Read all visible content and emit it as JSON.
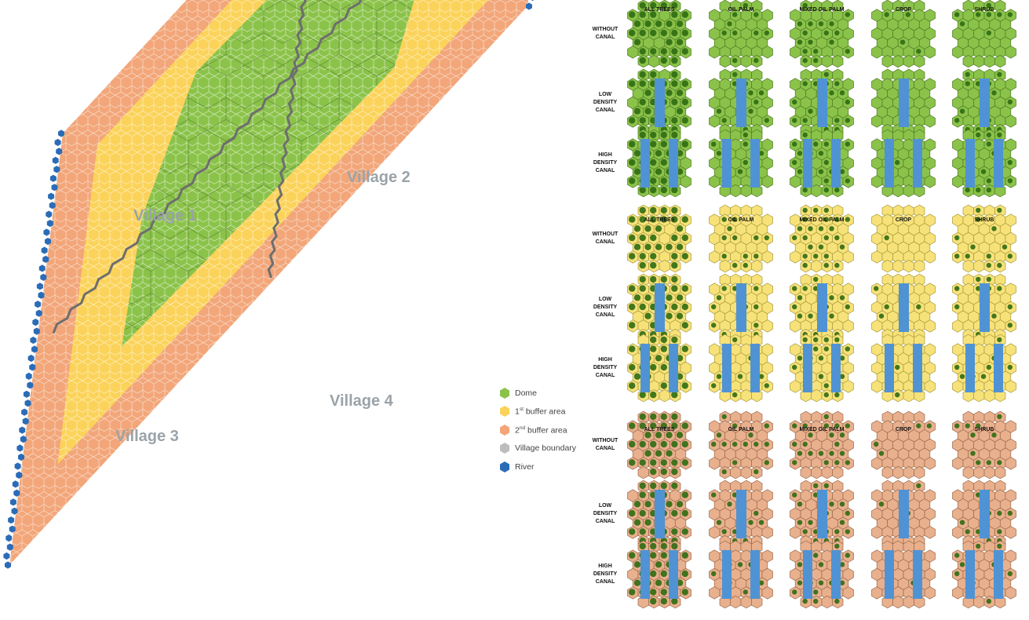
{
  "map": {
    "villages": [
      "Village 1",
      "Village 2",
      "Village 3",
      "Village 4"
    ],
    "colors": {
      "dome": "#8bc34a",
      "buffer1": "#fbd35a",
      "buffer2": "#f2a679",
      "boundary": "#6e6e6e",
      "river": "#2b6cb8"
    }
  },
  "legend": {
    "dome": "Dome",
    "buffer1_num": "1",
    "buffer1_sup": "st",
    "buffer1_text": " buffer area",
    "buffer2_num": "2",
    "buffer2_sup": "nd",
    "buffer2_text": " buffer area",
    "boundary": "Village boundary",
    "river": "River"
  },
  "panels": {
    "columns": [
      "ALL TREES",
      "OIL PALM",
      "MIXED OIL PALM",
      "CROP",
      "SHRUB"
    ],
    "rows": [
      [
        "WITHOUT",
        "CANAL"
      ],
      [
        "LOW",
        "DENSITY",
        "CANAL"
      ],
      [
        "HIGH",
        "DENSITY",
        "CANAL"
      ]
    ],
    "groups": [
      {
        "base": "#8bc34a",
        "edge": "#4f7a24"
      },
      {
        "base": "#f7e27a",
        "edge": "#a89a3a"
      },
      {
        "base": "#e9b08e",
        "edge": "#9a6a4a"
      }
    ],
    "canal_color": "#4f93d4",
    "tree_color": "#2f6b12"
  }
}
